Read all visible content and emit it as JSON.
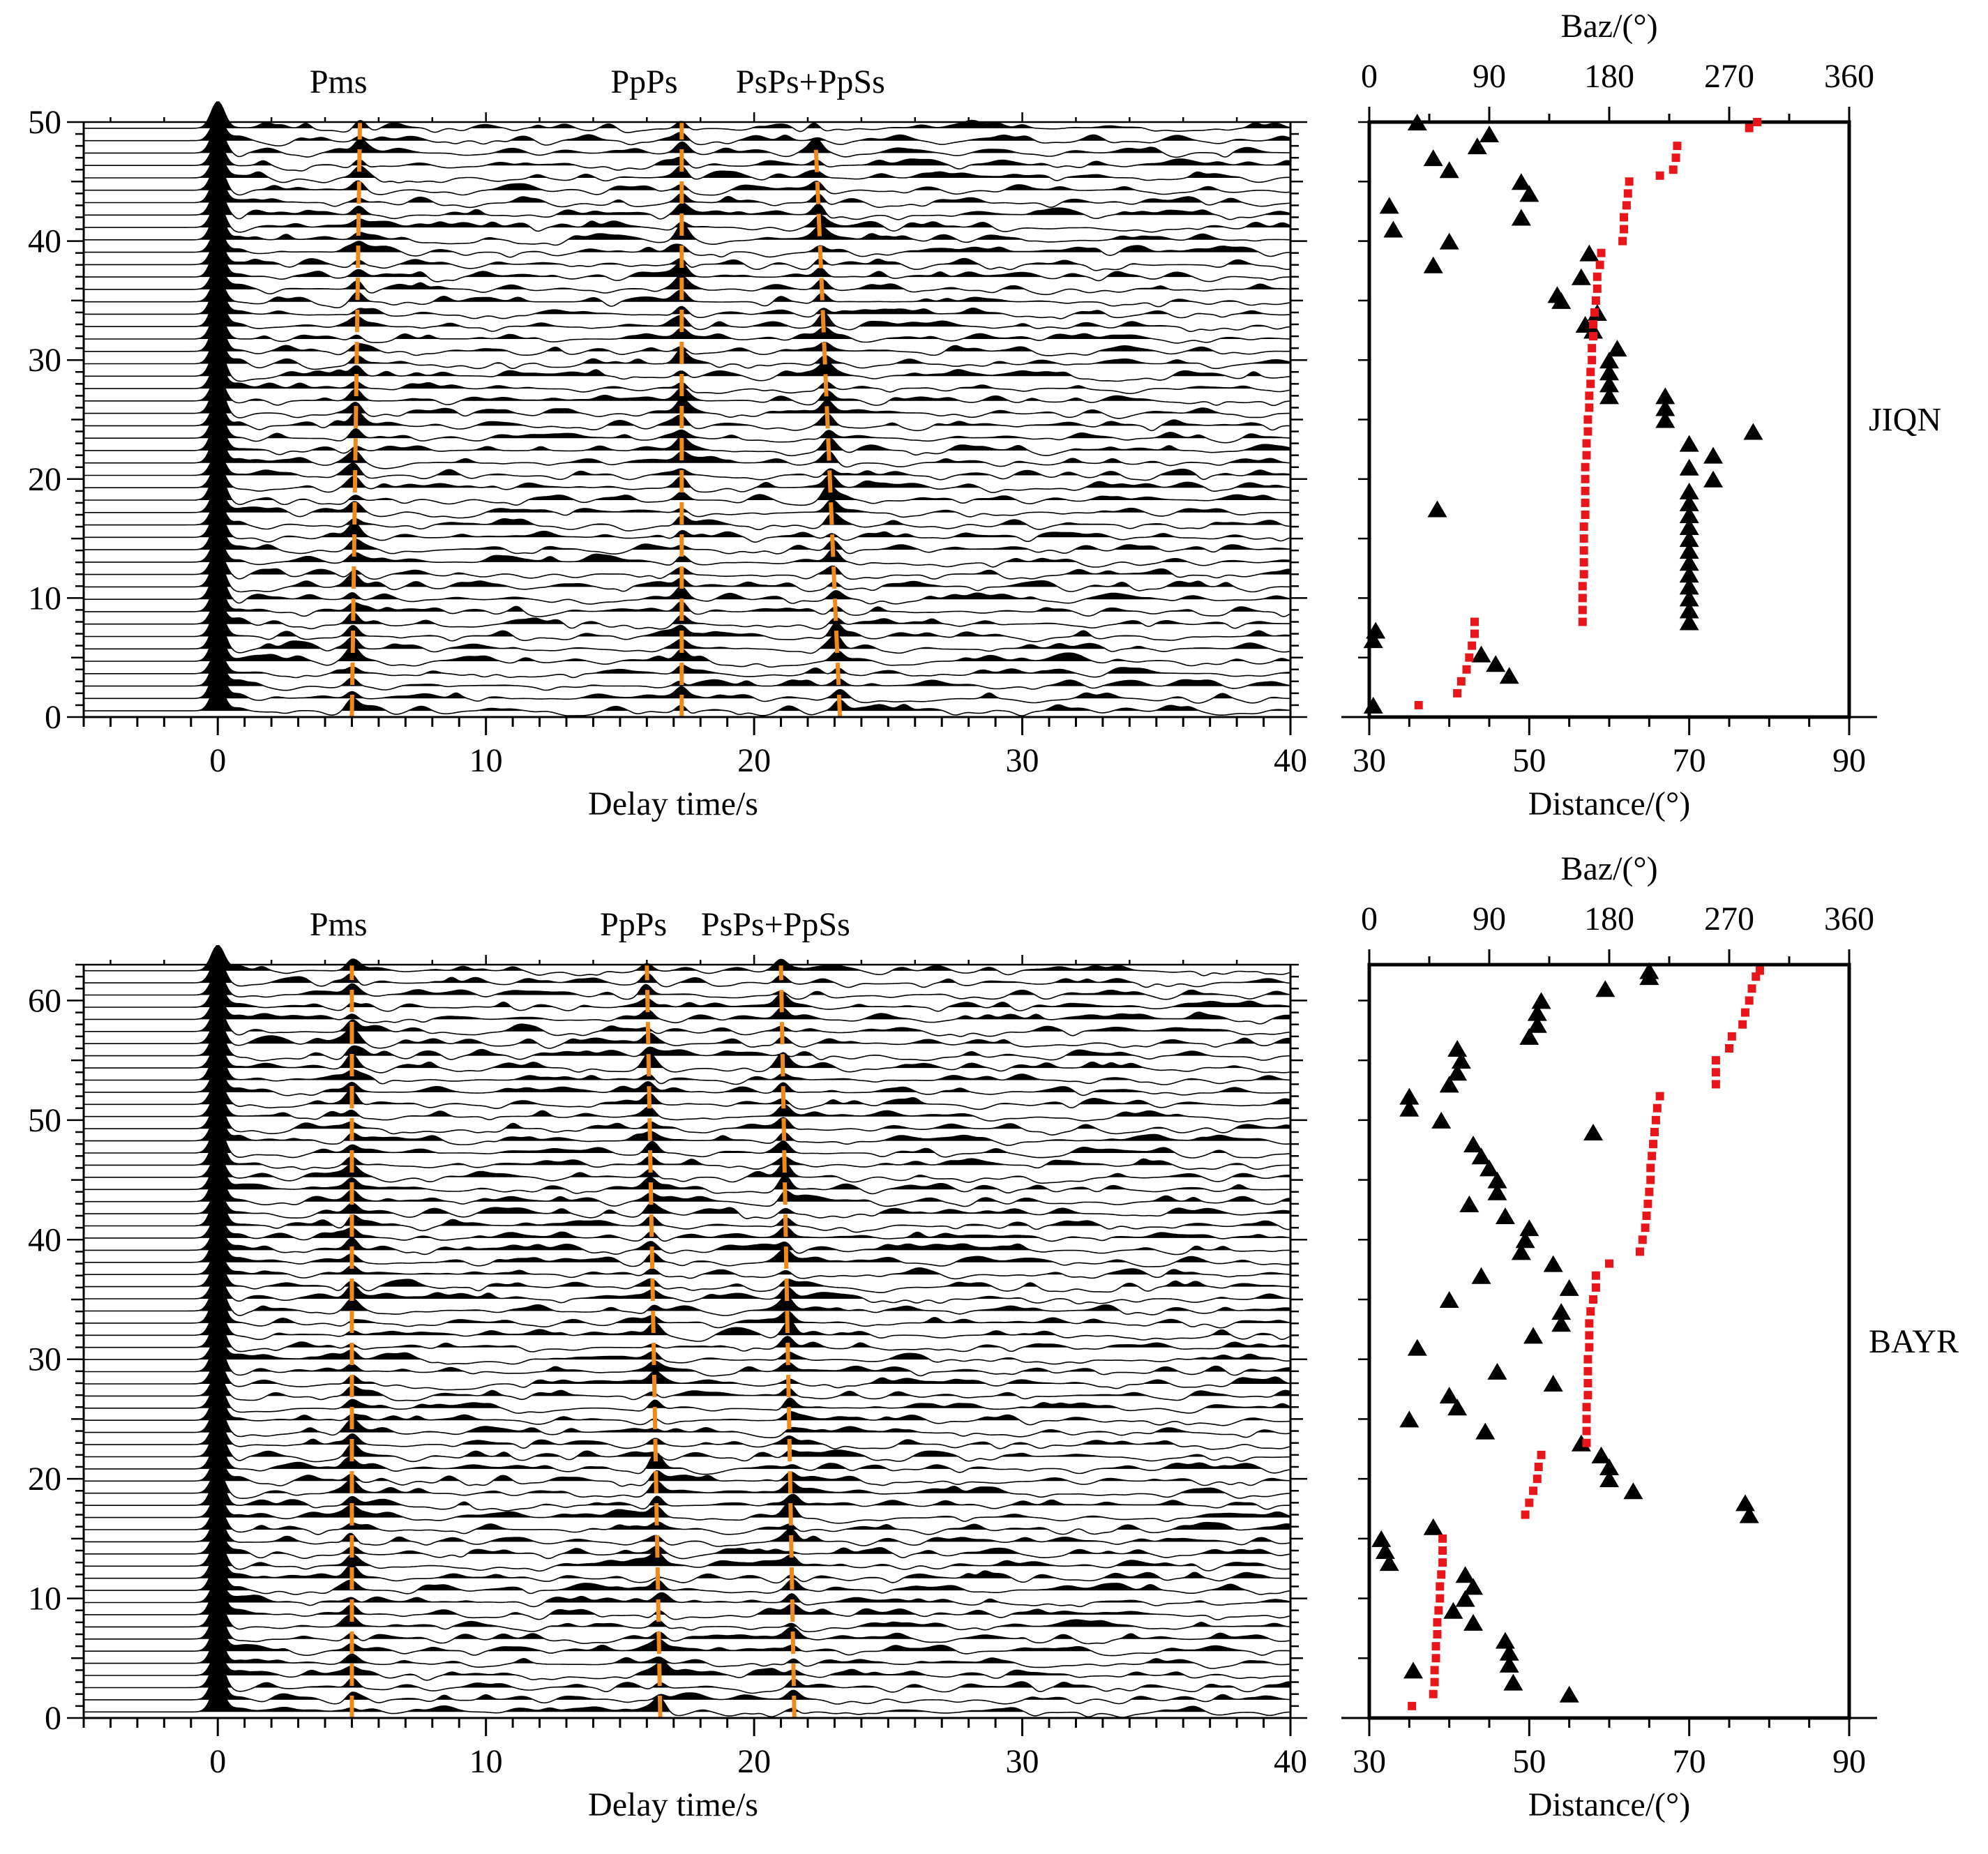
{
  "chart_data": [
    {
      "type": "line",
      "station": "",
      "xlabel": "Delay time/s",
      "ylabel": "",
      "xlim": [
        -5,
        40
      ],
      "ylim": [
        0,
        50
      ],
      "xticks": [
        0,
        10,
        20,
        30,
        40
      ],
      "yticks": [
        0,
        10,
        20,
        30,
        40,
        50
      ],
      "trace_count": 48,
      "phases": [
        {
          "name": "Pms",
          "label_x": 4.5,
          "line": [
            [
              5.0,
              0
            ],
            [
              5.3,
              50
            ]
          ]
        },
        {
          "name": "PpPs",
          "label_x": 15.9,
          "line": [
            [
              17.3,
              0
            ],
            [
              17.3,
              50
            ]
          ]
        },
        {
          "name": "PsPs+PpSs",
          "label_x": 22.1,
          "line": [
            [
              23.2,
              0
            ],
            [
              22.3,
              48
            ]
          ]
        }
      ]
    },
    {
      "type": "scatter",
      "station": "JIQN",
      "xlabel": "Distance/(°)",
      "x2label": "Baz/(°)",
      "xlim": [
        30,
        90
      ],
      "x2lim": [
        0,
        360
      ],
      "ylim": [
        0,
        50
      ],
      "xticks": [
        30,
        50,
        70,
        90
      ],
      "x2ticks": [
        0,
        90,
        180,
        270,
        360
      ],
      "series": [
        {
          "name": "",
          "marker": "triangle",
          "axis": "distance",
          "values": [
            [
              30.5,
              1
            ],
            [
              30.5,
              6.5
            ],
            [
              30.8,
              7.3
            ],
            [
              44,
              5.3
            ],
            [
              45.8,
              4.5
            ],
            [
              47.5,
              3.5
            ],
            [
              38.5,
              17.5
            ],
            [
              32.5,
              43
            ],
            [
              33,
              41
            ],
            [
              40,
              40
            ],
            [
              38,
              38
            ],
            [
              36,
              50
            ],
            [
              38,
              47
            ],
            [
              40,
              46
            ],
            [
              43.5,
              48
            ],
            [
              45,
              49
            ],
            [
              49,
              45
            ],
            [
              50,
              44
            ],
            [
              49,
              42
            ],
            [
              57.5,
              39
            ],
            [
              56.5,
              37
            ],
            [
              53.5,
              35.5
            ],
            [
              54,
              35
            ],
            [
              58.5,
              34
            ],
            [
              57,
              33
            ],
            [
              58,
              32.5
            ],
            [
              61,
              31
            ],
            [
              60,
              30
            ],
            [
              60,
              29
            ],
            [
              60,
              28
            ],
            [
              60,
              27
            ],
            [
              67,
              27
            ],
            [
              67,
              26
            ],
            [
              67,
              25
            ],
            [
              78,
              24
            ],
            [
              70,
              23
            ],
            [
              73,
              22
            ],
            [
              70,
              21
            ],
            [
              73,
              20
            ],
            [
              70,
              19
            ],
            [
              70,
              18
            ],
            [
              70,
              17
            ],
            [
              70,
              16
            ],
            [
              70,
              15
            ],
            [
              70,
              14
            ],
            [
              70,
              13
            ],
            [
              70,
              12
            ],
            [
              70,
              11
            ],
            [
              70,
              10
            ],
            [
              70,
              9
            ],
            [
              70,
              8
            ]
          ]
        },
        {
          "name": "",
          "marker": "square",
          "color": "#e8161a",
          "axis": "baz",
          "values": [
            [
              37,
              1
            ],
            [
              66,
              2
            ],
            [
              69,
              3
            ],
            [
              73,
              4
            ],
            [
              75,
              5
            ],
            [
              77,
              6
            ],
            [
              79,
              7
            ],
            [
              79,
              8
            ],
            [
              160,
              8
            ],
            [
              160,
              9
            ],
            [
              160,
              10
            ],
            [
              160,
              11
            ],
            [
              161,
              12
            ],
            [
              161,
              13
            ],
            [
              161,
              14
            ],
            [
              161,
              15
            ],
            [
              161,
              16
            ],
            [
              162,
              17
            ],
            [
              162,
              18
            ],
            [
              162,
              19
            ],
            [
              162,
              20
            ],
            [
              162,
              21
            ],
            [
              163,
              22
            ],
            [
              163,
              23
            ],
            [
              164,
              24
            ],
            [
              164,
              25
            ],
            [
              165,
              26
            ],
            [
              165,
              27
            ],
            [
              166,
              28
            ],
            [
              166,
              29
            ],
            [
              167,
              30
            ],
            [
              167,
              31
            ],
            [
              168,
              32
            ],
            [
              168,
              33
            ],
            [
              169,
              34
            ],
            [
              170,
              35
            ],
            [
              171,
              36
            ],
            [
              171,
              37
            ],
            [
              173,
              38
            ],
            [
              174,
              39
            ],
            [
              190,
              40
            ],
            [
              191,
              41
            ],
            [
              191,
              42
            ],
            [
              193,
              43
            ],
            [
              194,
              44
            ],
            [
              195,
              45
            ],
            [
              218,
              45.5
            ],
            [
              228,
              46
            ],
            [
              230,
              47
            ],
            [
              231,
              48
            ],
            [
              285,
              49.5
            ],
            [
              291,
              50
            ]
          ]
        }
      ]
    },
    {
      "type": "line",
      "station": "",
      "xlabel": "Delay time/s",
      "ylabel": "",
      "xlim": [
        -5,
        40
      ],
      "ylim": [
        0,
        63
      ],
      "xticks": [
        0,
        10,
        20,
        30,
        40
      ],
      "yticks": [
        0,
        10,
        20,
        30,
        40,
        50,
        60
      ],
      "trace_count": 62,
      "phases": [
        {
          "name": "Pms",
          "label_x": 4.5,
          "line": [
            [
              5.0,
              0
            ],
            [
              5.0,
              63
            ]
          ]
        },
        {
          "name": "PpPs",
          "label_x": 15.5,
          "line": [
            [
              16.5,
              0
            ],
            [
              16.0,
              63
            ]
          ]
        },
        {
          "name": "PsPs+PpSs",
          "label_x": 20.8,
          "line": [
            [
              21.5,
              0
            ],
            [
              21.0,
              63
            ]
          ]
        }
      ]
    },
    {
      "type": "scatter",
      "station": "BAYR",
      "xlabel": "Distance/(°)",
      "x2label": "Baz/(°)",
      "xlim": [
        30,
        90
      ],
      "x2lim": [
        0,
        360
      ],
      "ylim": [
        0,
        63
      ],
      "xticks": [
        30,
        50,
        70,
        90
      ],
      "x2ticks": [
        0,
        90,
        180,
        270,
        360
      ],
      "series": [
        {
          "name": "",
          "marker": "triangle",
          "axis": "distance",
          "values": [
            [
              55,
              2
            ],
            [
              48,
              3
            ],
            [
              35.5,
              4
            ],
            [
              47.5,
              4.5
            ],
            [
              47.5,
              5.5
            ],
            [
              47,
              6.5
            ],
            [
              43,
              8
            ],
            [
              40.5,
              9
            ],
            [
              42,
              10
            ],
            [
              43,
              11
            ],
            [
              42,
              12
            ],
            [
              32.5,
              13
            ],
            [
              32,
              14
            ],
            [
              31.5,
              15
            ],
            [
              38,
              16
            ],
            [
              77.5,
              17
            ],
            [
              77,
              18
            ],
            [
              63,
              19
            ],
            [
              60,
              20
            ],
            [
              60,
              21
            ],
            [
              59,
              22
            ],
            [
              56.5,
              23
            ],
            [
              44.5,
              24
            ],
            [
              35,
              25
            ],
            [
              41,
              26
            ],
            [
              40,
              27
            ],
            [
              53,
              28
            ],
            [
              46,
              29
            ],
            [
              36,
              31
            ],
            [
              50.5,
              32
            ],
            [
              54,
              33
            ],
            [
              54,
              34
            ],
            [
              40,
              35
            ],
            [
              55,
              36
            ],
            [
              44,
              37
            ],
            [
              53,
              38
            ],
            [
              49,
              39
            ],
            [
              49.5,
              40
            ],
            [
              50,
              41
            ],
            [
              47,
              42
            ],
            [
              42.5,
              43
            ],
            [
              46,
              44
            ],
            [
              46,
              45
            ],
            [
              45,
              46
            ],
            [
              44,
              47
            ],
            [
              43,
              48
            ],
            [
              58,
              49
            ],
            [
              39,
              50
            ],
            [
              35,
              51
            ],
            [
              35,
              52
            ],
            [
              40,
              53
            ],
            [
              41,
              54
            ],
            [
              41.5,
              55
            ],
            [
              41,
              56
            ],
            [
              50,
              57
            ],
            [
              51,
              58
            ],
            [
              51,
              59
            ],
            [
              51.5,
              60
            ],
            [
              59.5,
              61
            ],
            [
              65,
              62
            ],
            [
              65,
              62.5
            ]
          ]
        },
        {
          "name": "",
          "marker": "square",
          "color": "#e8161a",
          "axis": "baz",
          "values": [
            [
              32,
              1
            ],
            [
              48,
              2
            ],
            [
              49,
              3
            ],
            [
              49,
              4
            ],
            [
              50,
              5
            ],
            [
              50,
              6
            ],
            [
              51,
              7
            ],
            [
              51,
              8
            ],
            [
              52,
              9
            ],
            [
              53,
              10
            ],
            [
              53,
              11
            ],
            [
              54,
              12
            ],
            [
              55,
              13
            ],
            [
              55,
              14
            ],
            [
              55,
              15
            ],
            [
              117,
              17
            ],
            [
              120,
              18
            ],
            [
              123,
              19
            ],
            [
              126,
              20
            ],
            [
              127,
              21
            ],
            [
              129,
              22
            ],
            [
              163,
              23
            ],
            [
              163,
              24
            ],
            [
              163,
              25
            ],
            [
              163,
              26
            ],
            [
              164,
              27
            ],
            [
              164,
              28
            ],
            [
              164,
              29
            ],
            [
              164,
              30
            ],
            [
              165,
              31
            ],
            [
              165,
              32
            ],
            [
              165,
              33
            ],
            [
              166,
              34
            ],
            [
              168,
              35
            ],
            [
              170,
              36
            ],
            [
              170,
              37
            ],
            [
              180,
              38
            ],
            [
              203,
              39
            ],
            [
              205,
              40
            ],
            [
              207,
              41
            ],
            [
              208,
              42
            ],
            [
              209,
              43
            ],
            [
              210,
              44
            ],
            [
              211,
              45
            ],
            [
              211,
              46
            ],
            [
              212,
              47
            ],
            [
              213,
              48
            ],
            [
              214,
              49
            ],
            [
              215,
              50
            ],
            [
              216,
              51
            ],
            [
              218,
              52
            ],
            [
              260,
              53
            ],
            [
              260,
              54
            ],
            [
              260,
              55
            ],
            [
              270,
              56
            ],
            [
              272,
              57
            ],
            [
              280,
              58
            ],
            [
              282,
              59
            ],
            [
              285,
              60
            ],
            [
              287,
              61
            ],
            [
              290,
              62
            ],
            [
              293,
              62.5
            ]
          ]
        }
      ]
    }
  ]
}
